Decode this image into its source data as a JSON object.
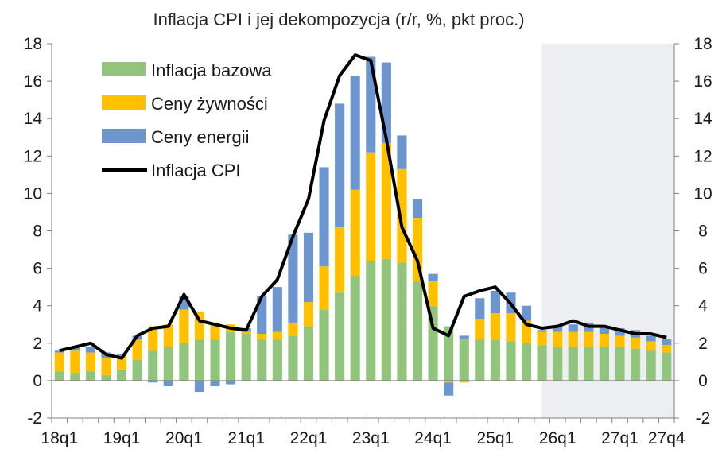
{
  "chart_data": {
    "type": "bar",
    "title": "Inflacja CPI i jej dekompozycja (r/r, %, pkt proc.)",
    "categories": [
      "18q1",
      "18q2",
      "18q3",
      "18q4",
      "19q1",
      "19q2",
      "19q3",
      "19q4",
      "20q1",
      "20q2",
      "20q3",
      "20q4",
      "21q1",
      "21q2",
      "21q3",
      "21q4",
      "22q1",
      "22q2",
      "22q3",
      "22q4",
      "23q1",
      "23q2",
      "23q3",
      "23q4",
      "24q1",
      "24q2",
      "24q3",
      "24q4",
      "25q1",
      "25q2",
      "25q3",
      "25q4",
      "26q1",
      "26q2",
      "26q3",
      "26q4",
      "27q1",
      "27q2",
      "27q3",
      "27q4"
    ],
    "x_tick_labels": [
      {
        "index": 0,
        "label": "18q1"
      },
      {
        "index": 4,
        "label": "19q1"
      },
      {
        "index": 8,
        "label": "20q1"
      },
      {
        "index": 12,
        "label": "21q1"
      },
      {
        "index": 16,
        "label": "22q1"
      },
      {
        "index": 20,
        "label": "23q1"
      },
      {
        "index": 24,
        "label": "24q1"
      },
      {
        "index": 28,
        "label": "25q1"
      },
      {
        "index": 32,
        "label": "26q1"
      },
      {
        "index": 36,
        "label": "27q1"
      },
      {
        "index": 39,
        "label": "27q4"
      }
    ],
    "series": [
      {
        "name": "Inflacja bazowa",
        "kind": "bar",
        "color": "#93c47d",
        "values": [
          0.5,
          0.4,
          0.5,
          0.3,
          0.6,
          1.1,
          1.6,
          1.8,
          2.0,
          2.2,
          2.2,
          2.6,
          2.5,
          2.2,
          2.2,
          2.4,
          2.9,
          3.8,
          4.7,
          5.6,
          6.4,
          6.5,
          6.3,
          5.3,
          4.0,
          2.9,
          2.2,
          2.2,
          2.2,
          2.1,
          2.0,
          1.9,
          1.8,
          1.8,
          1.8,
          1.8,
          1.8,
          1.7,
          1.6,
          1.5
        ]
      },
      {
        "name": "Ceny żywności",
        "kind": "bar",
        "color": "#ffc000",
        "values": [
          1.0,
          1.2,
          1.0,
          0.9,
          0.7,
          1.1,
          1.3,
          1.2,
          1.8,
          1.5,
          0.9,
          0.4,
          0.1,
          0.3,
          0.4,
          0.7,
          1.3,
          2.3,
          3.5,
          4.6,
          5.8,
          6.2,
          5.0,
          3.4,
          1.3,
          -0.1,
          -0.1,
          1.1,
          1.4,
          1.5,
          1.2,
          0.7,
          0.8,
          0.8,
          0.8,
          0.7,
          0.6,
          0.6,
          0.5,
          0.4
        ]
      },
      {
        "name": "Ceny energii",
        "kind": "bar",
        "color": "#6d96cf",
        "values": [
          0.1,
          0.2,
          0.3,
          0.3,
          0.1,
          0.2,
          -0.1,
          -0.3,
          0.7,
          -0.6,
          -0.3,
          -0.2,
          0.2,
          2.0,
          2.4,
          4.7,
          3.7,
          5.3,
          6.6,
          6.1,
          5.1,
          4.3,
          1.8,
          1.0,
          0.4,
          -0.7,
          0.2,
          1.1,
          1.2,
          1.1,
          0.8,
          0.1,
          0.3,
          0.4,
          0.5,
          0.4,
          0.4,
          0.4,
          0.3,
          0.3
        ]
      },
      {
        "name": "Inflacja CPI",
        "kind": "line",
        "color": "#000000",
        "values": [
          1.6,
          1.8,
          2.0,
          1.4,
          1.2,
          2.4,
          2.8,
          2.9,
          4.6,
          3.2,
          3.0,
          2.8,
          2.7,
          4.5,
          5.4,
          7.7,
          9.7,
          13.9,
          16.3,
          17.4,
          17.1,
          12.9,
          8.2,
          6.4,
          2.8,
          2.4,
          4.5,
          4.8,
          5.0,
          4.1,
          3.0,
          2.8,
          2.9,
          3.2,
          2.9,
          2.9,
          2.7,
          2.5,
          2.5,
          2.3
        ]
      }
    ],
    "ylim": [
      -2,
      18
    ],
    "y_ticks": [
      -2,
      0,
      2,
      4,
      6,
      8,
      10,
      12,
      14,
      16,
      18
    ],
    "secondary_y_axis": true,
    "forecast_shading_from": "25q4",
    "forecast_shading_color": "#eceef1",
    "legend_position": "top-left",
    "grid": false
  }
}
